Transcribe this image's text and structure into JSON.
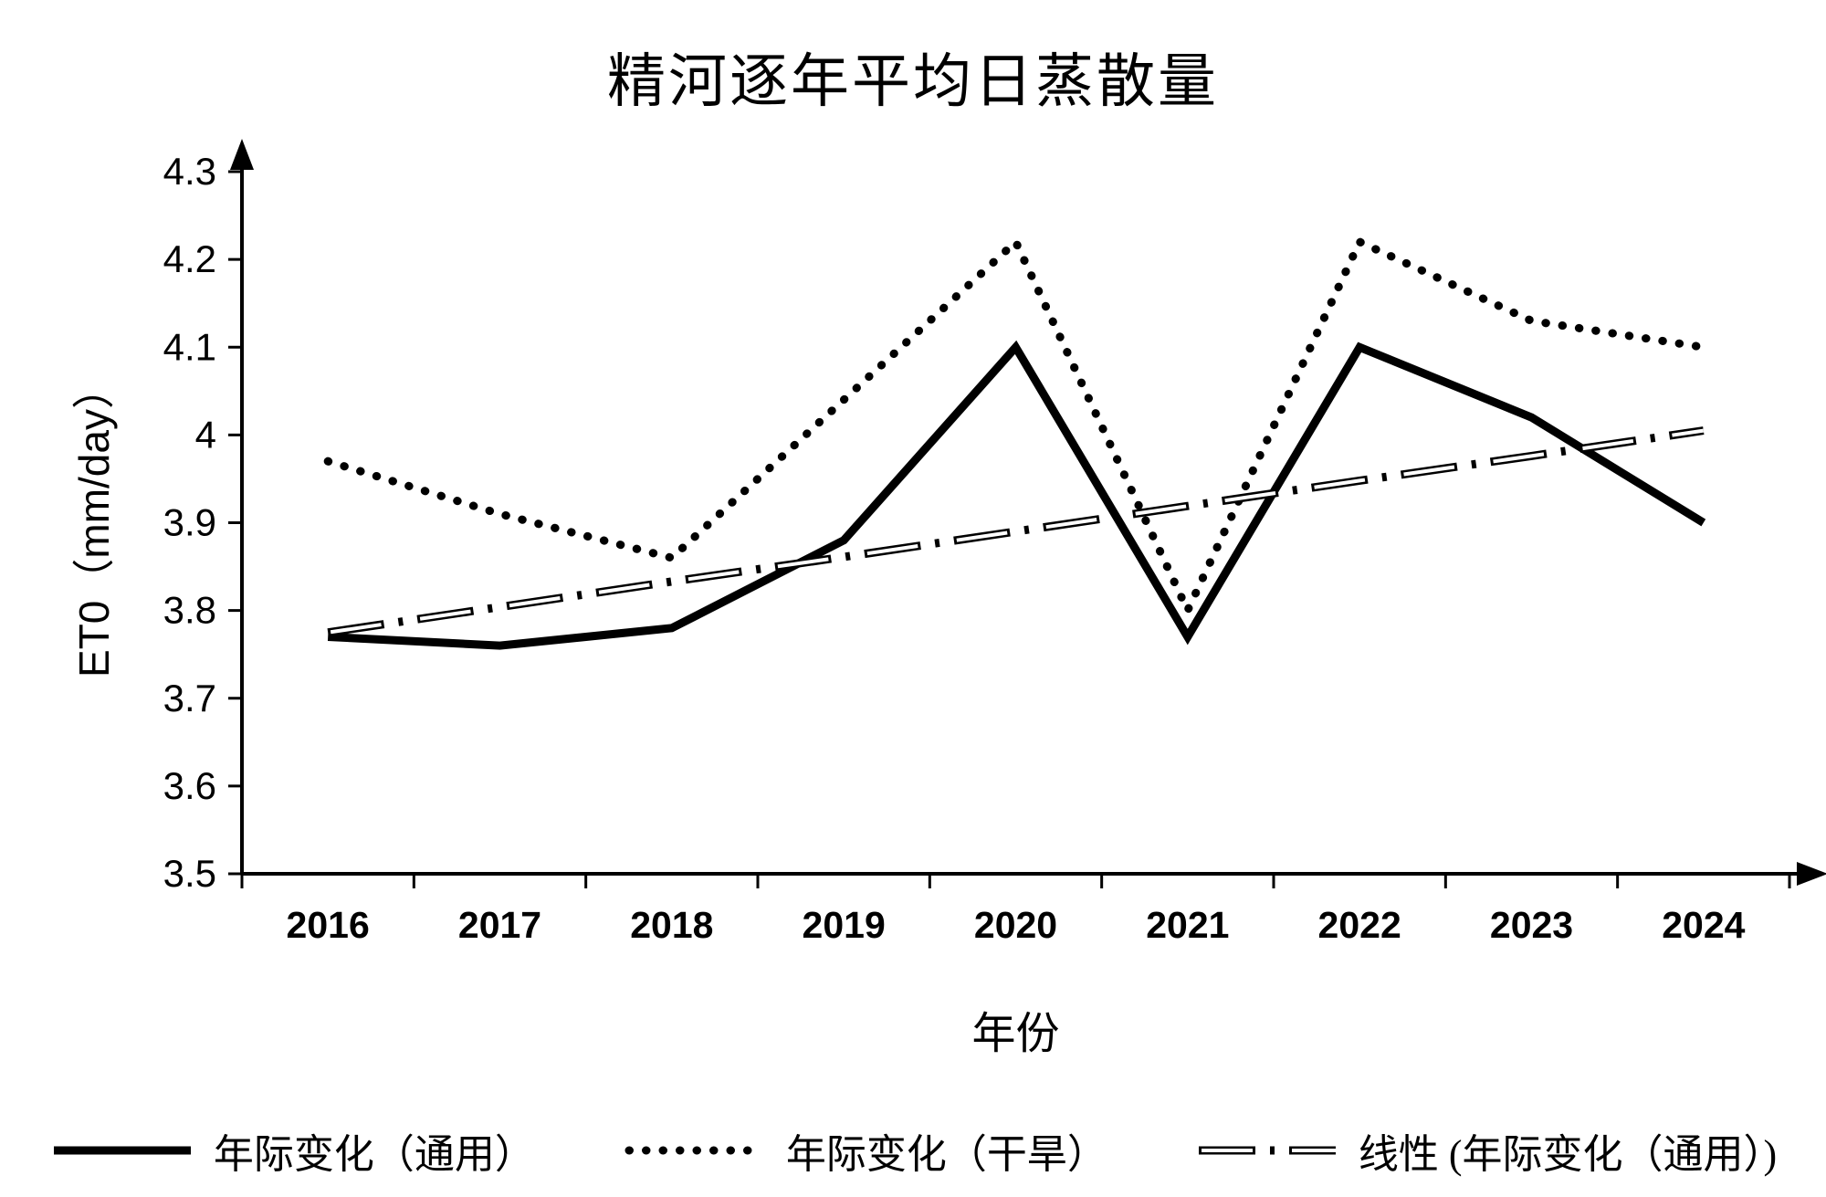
{
  "title": "精河逐年平均日蒸散量",
  "chart_data": {
    "type": "line",
    "categories": [
      "2016",
      "2017",
      "2018",
      "2019",
      "2020",
      "2021",
      "2022",
      "2023",
      "2024"
    ],
    "series": [
      {
        "name": "年际变化（通用）",
        "style": "solid",
        "values": [
          3.77,
          3.76,
          3.78,
          3.88,
          4.1,
          3.77,
          4.1,
          4.02,
          3.9
        ]
      },
      {
        "name": "年际变化（干旱）",
        "style": "dotted",
        "values": [
          3.97,
          3.91,
          3.86,
          4.04,
          4.22,
          3.8,
          4.22,
          4.13,
          4.1
        ]
      },
      {
        "name": "线性 (年际变化（通用）)",
        "style": "dash-dot",
        "values": [
          3.775,
          3.804,
          3.833,
          3.861,
          3.89,
          3.919,
          3.948,
          3.976,
          4.005
        ]
      }
    ],
    "title": "精河逐年平均日蒸散量",
    "xlabel": "年份",
    "ylabel": "ET0（mm/day）",
    "ylim": [
      3.5,
      4.3
    ],
    "ytick_labels": [
      "3.5",
      "3.6",
      "3.7",
      "3.8",
      "3.9",
      "4",
      "4.1",
      "4.2",
      "4.3"
    ],
    "grid": false,
    "legend_position": "bottom",
    "line_color": "#000000",
    "background_color": "#ffffff"
  }
}
